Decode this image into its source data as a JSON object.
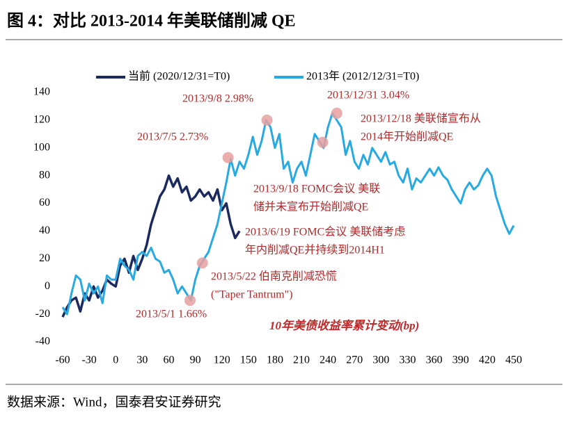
{
  "title": "图 4：对比 2013-2014 年美联储削减 QE",
  "source": "数据来源：Wind，国泰君安证券研究",
  "chart_data": {
    "type": "line",
    "legend": "top",
    "ylabel": "10年美债收益率累计变动(bp)",
    "xlim": [
      -60,
      450
    ],
    "xticks": [
      -60,
      -30,
      0,
      30,
      60,
      90,
      120,
      150,
      180,
      210,
      240,
      270,
      300,
      330,
      360,
      390,
      420,
      450
    ],
    "ylim": [
      -40,
      140
    ],
    "yticks": [
      -40,
      -20,
      0,
      20,
      40,
      60,
      80,
      100,
      120,
      140
    ],
    "x": [
      -60,
      -55,
      -50,
      -45,
      -40,
      -35,
      -30,
      -25,
      -20,
      -15,
      -10,
      -5,
      0,
      5,
      10,
      15,
      20,
      25,
      30,
      35,
      40,
      45,
      50,
      55,
      60,
      65,
      70,
      75,
      80,
      85,
      90,
      95,
      100,
      105,
      110,
      115,
      120,
      125,
      130,
      135,
      140,
      145,
      150,
      155,
      160,
      165,
      170,
      175,
      180,
      185,
      190,
      195,
      200,
      205,
      210,
      215,
      220,
      225,
      230,
      235,
      240,
      245,
      250,
      255,
      260,
      265,
      270,
      275,
      280,
      285,
      290,
      295,
      300,
      305,
      310,
      315,
      320,
      325,
      330,
      335,
      340,
      345,
      350,
      355,
      360,
      365,
      370,
      375,
      380,
      385,
      390,
      395,
      400,
      405,
      410,
      415,
      420,
      425,
      430,
      435,
      440,
      445,
      450
    ],
    "series": [
      {
        "name": "当前 (2020/12/31=T0)",
        "color": "#1b2a5e",
        "values": [
          -22,
          -15,
          -10,
          -8,
          -18,
          -5,
          -10,
          0,
          -8,
          -3,
          5,
          2,
          0,
          15,
          20,
          10,
          22,
          12,
          20,
          30,
          45,
          55,
          65,
          70,
          80,
          72,
          78,
          68,
          72,
          62,
          65,
          70,
          65,
          68,
          62,
          70,
          55,
          60,
          45,
          35,
          40,
          null,
          null,
          null,
          null,
          null,
          null,
          null,
          null,
          null,
          null,
          null,
          null,
          null,
          null,
          null,
          null,
          null,
          null,
          null,
          null,
          null,
          null,
          null,
          null,
          null,
          null,
          null,
          null,
          null,
          null,
          null,
          null,
          null,
          null,
          null,
          null,
          null,
          null,
          null,
          null,
          null,
          null,
          null,
          null,
          null,
          null,
          null,
          null,
          null,
          null,
          null,
          null,
          null,
          null,
          null,
          null,
          null,
          null,
          null,
          null,
          null,
          null
        ]
      },
      {
        "name": "2013年 (2012/12/31=T0)",
        "color": "#27a9e1",
        "values": [
          -15,
          -20,
          -5,
          8,
          5,
          -10,
          2,
          -5,
          0,
          -12,
          8,
          5,
          5,
          20,
          15,
          12,
          5,
          22,
          25,
          22,
          28,
          20,
          18,
          10,
          12,
          5,
          -5,
          0,
          -5,
          -10,
          5,
          15,
          20,
          25,
          35,
          45,
          60,
          75,
          92,
          80,
          90,
          85,
          95,
          108,
          95,
          105,
          120,
          115,
          100,
          110,
          85,
          90,
          75,
          85,
          90,
          80,
          95,
          110,
          105,
          100,
          115,
          125,
          120,
          115,
          95,
          105,
          90,
          85,
          95,
          88,
          100,
          95,
          90,
          97,
          88,
          90,
          80,
          75,
          85,
          70,
          78,
          75,
          80,
          85,
          80,
          86,
          80,
          77,
          70,
          65,
          60,
          70,
          75,
          70,
          73,
          80,
          85,
          80,
          65,
          55,
          45,
          38,
          44
        ]
      }
    ],
    "annotations": [
      {
        "lines": [
          "2013/9/8 2.98%"
        ],
        "x": 171,
        "y": 120
      },
      {
        "lines": [
          "2013/12/31 3.04%"
        ],
        "x": 250,
        "y": 125
      },
      {
        "lines": [
          "2013/12/18 美联储宣布从",
          "2014年开始削减QE"
        ],
        "x": 234,
        "y": 104
      },
      {
        "lines": [
          "2013/7/5 2.73%"
        ],
        "x": 127,
        "y": 93
      },
      {
        "lines": [
          "2013/9/18 FOMC会议 美联",
          "储并未宣布开始削减QE"
        ]
      },
      {
        "lines": [
          "2013/6/19 FOMC会议 美联储考虑",
          "年内削减QE并持续到2014H1"
        ]
      },
      {
        "lines": [
          "2013/5/22 伯南克削减恐慌",
          "(\"Taper Tantrum\")"
        ],
        "x": 98,
        "y": 17
      },
      {
        "lines": [
          "2013/5/1 1.66%"
        ],
        "x": 84,
        "y": -10
      }
    ]
  }
}
